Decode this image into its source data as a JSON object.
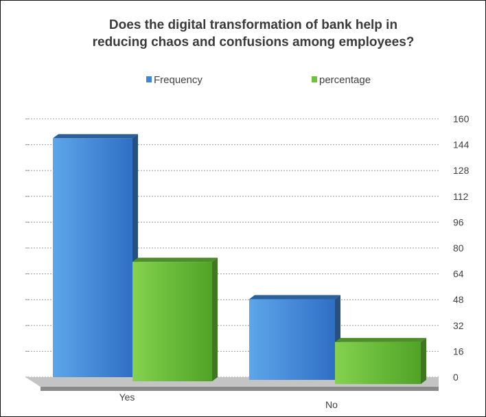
{
  "chart_data": {
    "type": "bar",
    "title_lines": [
      "Does the digital transformation of bank help in",
      "reducing chaos and confusions among employees?"
    ],
    "categories": [
      "Yes",
      "No"
    ],
    "series": [
      {
        "name": "Frequency",
        "values": [
          148,
          50
        ],
        "color": "#3f86d6"
      },
      {
        "name": "percentage",
        "values": [
          74,
          26
        ],
        "color": "#6cc43a"
      }
    ],
    "ylim": [
      0,
      160
    ],
    "yticks": [
      "160",
      "144",
      "128",
      "112",
      "96",
      "80",
      "64",
      "48",
      "32",
      "16",
      "0"
    ],
    "legend_position": "top",
    "grid": true,
    "style": "3d-clustered-column"
  }
}
